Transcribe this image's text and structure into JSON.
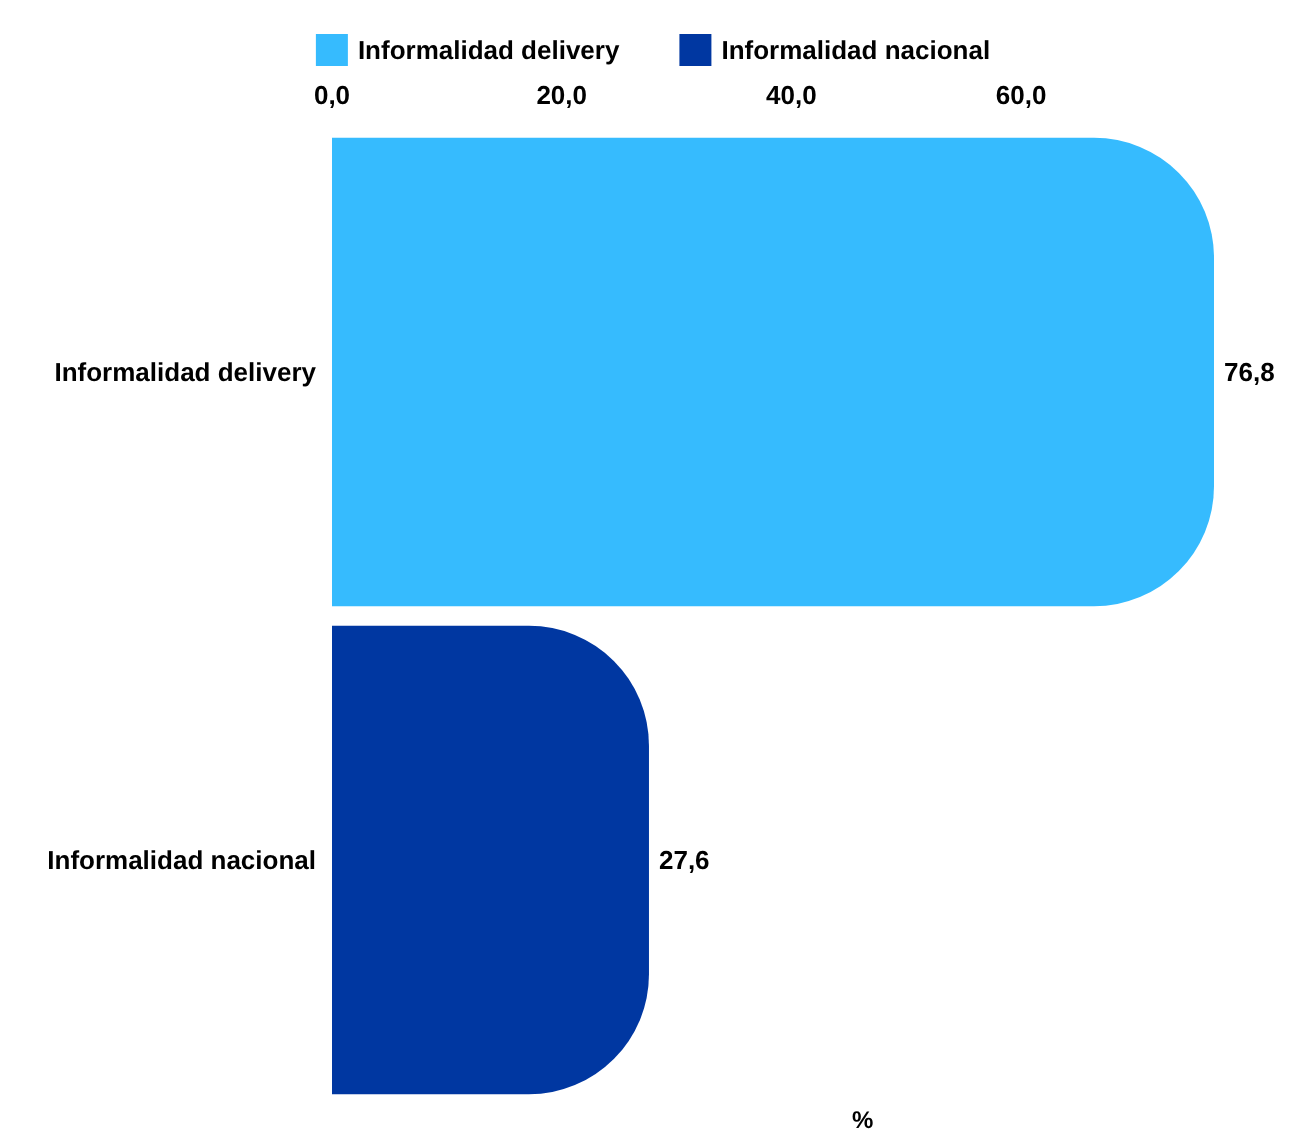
{
  "chart_data": {
    "type": "bar",
    "orientation": "horizontal",
    "xlabel": "%",
    "stacked": true,
    "categories": [
      "Informalidad delivery",
      "Informalidad nacional"
    ],
    "series": [
      {
        "name": "Informalidad delivery",
        "color": "#36bbfe",
        "values": [
          76.8,
          null
        ],
        "value_labels": [
          "76,8",
          null
        ]
      },
      {
        "name": "Informalidad nacional",
        "color": "#0037a1",
        "values": [
          null,
          27.6
        ],
        "value_labels": [
          null,
          "27,6"
        ]
      }
    ],
    "xlim": [
      0,
      76.8
    ],
    "xticks": [
      {
        "value": 0,
        "label": "0,0"
      },
      {
        "value": 20,
        "label": "20,0"
      },
      {
        "value": 40,
        "label": "40,0"
      },
      {
        "value": 60,
        "label": "60,0"
      }
    ],
    "legend": "top",
    "grid": false
  }
}
